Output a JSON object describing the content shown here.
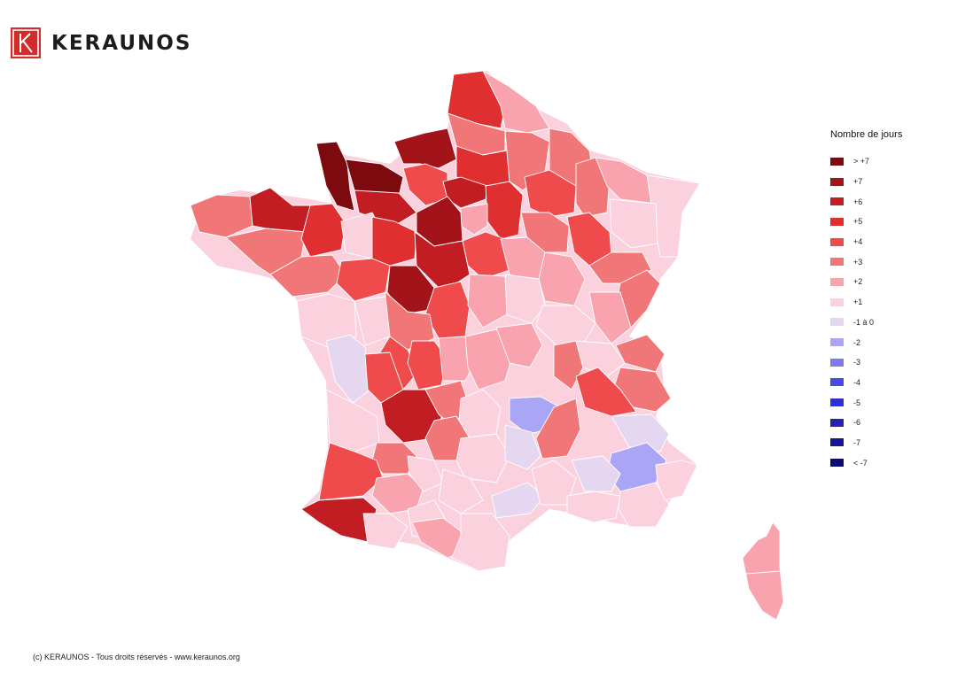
{
  "brand": {
    "name": "KERAUNOS",
    "color": "#d52b2b"
  },
  "legend": {
    "title": "Nombre de jours",
    "items": [
      {
        "label": "> +7",
        "color": "#7c0a0e"
      },
      {
        "label": "+7",
        "color": "#a21419"
      },
      {
        "label": "+6",
        "color": "#c21d22"
      },
      {
        "label": "+5",
        "color": "#df2f31"
      },
      {
        "label": "+4",
        "color": "#ef4b4d"
      },
      {
        "label": "+3",
        "color": "#f07677"
      },
      {
        "label": "+2",
        "color": "#f8a3ad"
      },
      {
        "label": "+1",
        "color": "#fbd1de"
      },
      {
        "label": "-1 à 0",
        "color": "#e6d7f1"
      },
      {
        "label": "-2",
        "color": "#aaa6f5"
      },
      {
        "label": "-3",
        "color": "#7e7aee"
      },
      {
        "label": "-4",
        "color": "#4b48e6"
      },
      {
        "label": "-5",
        "color": "#2f2fd4"
      },
      {
        "label": "-6",
        "color": "#2222b3"
      },
      {
        "label": "-7",
        "color": "#161690"
      },
      {
        "label": "< -7",
        "color": "#0b0b6e"
      }
    ]
  },
  "footer": {
    "text": "(c) KERAUNOS - Tous droits réservés - www.keraunos.org"
  }
}
